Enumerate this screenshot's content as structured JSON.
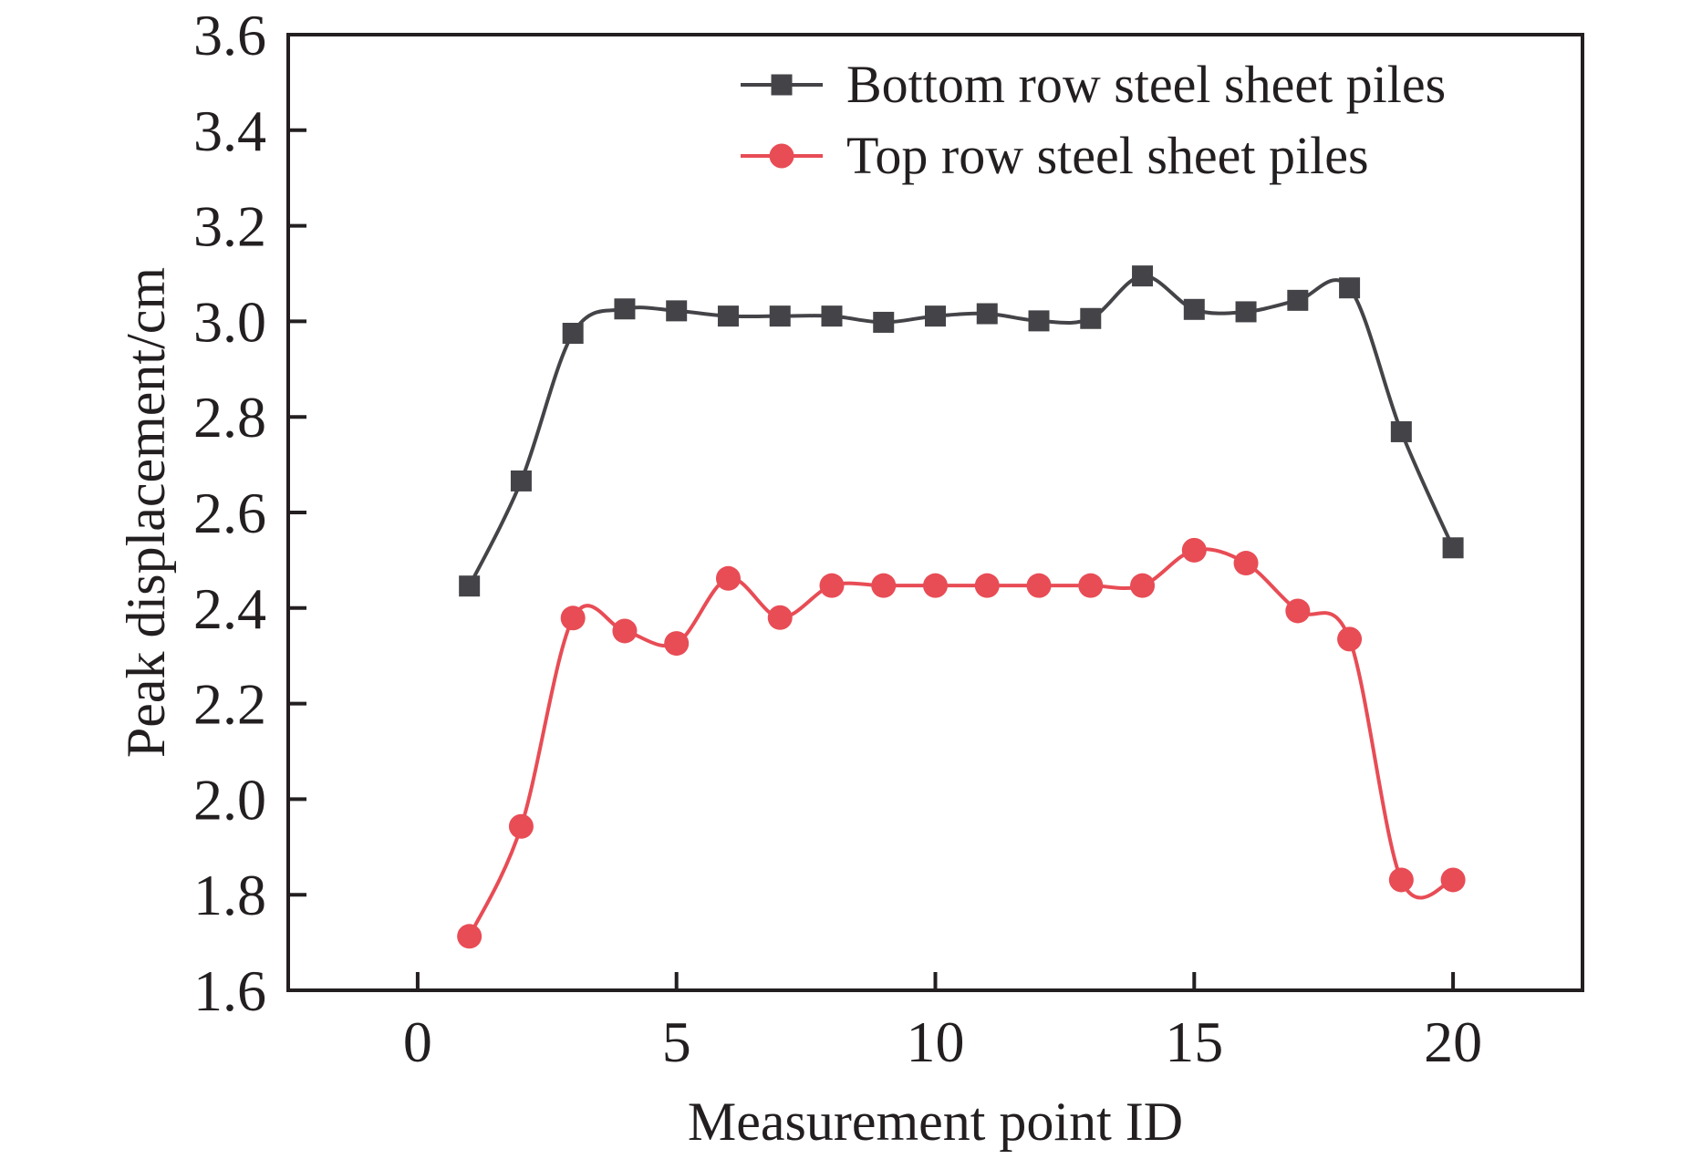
{
  "chart_data": {
    "type": "line",
    "title": "",
    "xlabel": "Measurement point ID",
    "ylabel": "Peak displacement/cm",
    "xlim": [
      -2.5,
      22.5
    ],
    "ylim": [
      1.6,
      3.6
    ],
    "xticks": [
      0,
      5,
      10,
      15,
      20
    ],
    "xtick_labels": [
      "0",
      "5",
      "10",
      "15",
      "20"
    ],
    "yticks": [
      1.6,
      1.8,
      2.0,
      2.2,
      2.4,
      2.6,
      2.8,
      3.0,
      3.2,
      3.4,
      3.6
    ],
    "ytick_labels": [
      "1.6",
      "1.8",
      "2.0",
      "2.2",
      "2.4",
      "2.6",
      "2.8",
      "3.0",
      "3.2",
      "3.4",
      "3.6"
    ],
    "grid": false,
    "legend_position": "top-right",
    "smooth": true,
    "x": [
      1,
      2,
      3,
      4,
      5,
      6,
      7,
      8,
      9,
      10,
      11,
      12,
      13,
      14,
      15,
      16,
      17,
      18,
      19,
      20
    ],
    "series": [
      {
        "name": "Bottom row steel sheet piles",
        "marker": "square",
        "color": "#444448",
        "values": [
          2.446,
          2.666,
          2.975,
          3.026,
          3.022,
          3.011,
          3.011,
          3.011,
          2.998,
          3.011,
          3.016,
          3.001,
          3.006,
          3.095,
          3.025,
          3.02,
          3.044,
          3.07,
          2.769,
          2.526
        ]
      },
      {
        "name": "Top row steel sheet piles",
        "marker": "circle",
        "color": "#E84C55",
        "values": [
          1.713,
          1.943,
          2.379,
          2.352,
          2.326,
          2.462,
          2.38,
          2.447,
          2.447,
          2.447,
          2.447,
          2.447,
          2.447,
          2.447,
          2.521,
          2.494,
          2.394,
          2.335,
          1.831,
          1.831
        ]
      }
    ]
  }
}
